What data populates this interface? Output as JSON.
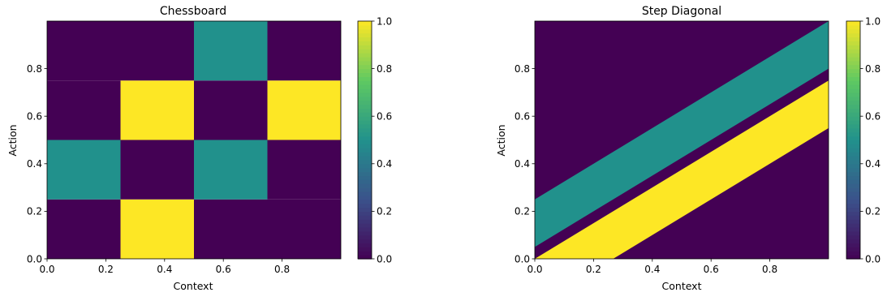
{
  "chart_data": [
    {
      "type": "heatmap",
      "title": "Chessboard",
      "xlabel": "Context",
      "ylabel": "Action",
      "xlim": [
        0.0,
        1.0
      ],
      "ylim": [
        0.0,
        1.0
      ],
      "xticks": [
        "0.0",
        "0.2",
        "0.4",
        "0.6",
        "0.8"
      ],
      "yticks": [
        "0.0",
        "0.2",
        "0.4",
        "0.6",
        "0.8"
      ],
      "grid": false,
      "colormap": "viridis",
      "colorbar": {
        "min": 0.0,
        "max": 1.0,
        "ticks": [
          "0.0",
          "0.2",
          "0.4",
          "0.6",
          "0.8",
          "1.0"
        ]
      },
      "x_edges": [
        0.0,
        0.25,
        0.5,
        0.75,
        1.0
      ],
      "y_edges": [
        0.0,
        0.25,
        0.5,
        0.75,
        1.0
      ],
      "values": [
        [
          0.0,
          1.0,
          0.0,
          0.0
        ],
        [
          0.5,
          0.0,
          0.5,
          0.0
        ],
        [
          0.0,
          1.0,
          0.0,
          1.0
        ],
        [
          0.0,
          0.0,
          0.5,
          0.0
        ]
      ]
    },
    {
      "type": "heatmap",
      "title": "Step Diagonal",
      "xlabel": "Context",
      "ylabel": "Action",
      "xlim": [
        0.0,
        1.0
      ],
      "ylim": [
        0.0,
        1.0
      ],
      "xticks": [
        "0.0",
        "0.2",
        "0.4",
        "0.6",
        "0.8"
      ],
      "yticks": [
        "0.0",
        "0.2",
        "0.4",
        "0.6",
        "0.8"
      ],
      "grid": false,
      "colormap": "viridis",
      "colorbar": {
        "min": 0.0,
        "max": 1.0,
        "ticks": [
          "0.0",
          "0.2",
          "0.4",
          "0.6",
          "0.8",
          "1.0"
        ]
      },
      "background_value": 0.0,
      "bands": [
        {
          "value": 0.5,
          "y_lower_at_x0": 0.05,
          "y_upper_at_x0": 0.25,
          "slope": 0.75
        },
        {
          "value": 1.0,
          "y_lower_at_x0": -0.2,
          "y_upper_at_x0": 0.0,
          "slope": 0.75
        }
      ]
    }
  ],
  "colors": {
    "low": "#440154",
    "q1": "#3b528b",
    "mid": "#21918c",
    "q3": "#5ec962",
    "high": "#fde725"
  }
}
